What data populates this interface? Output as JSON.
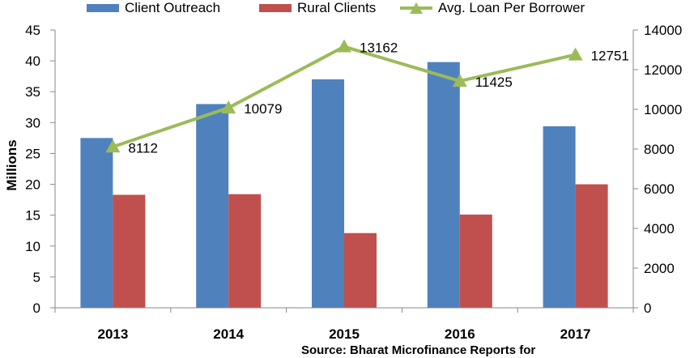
{
  "chart_data": {
    "type": "bar",
    "categories": [
      "2013",
      "2014",
      "2015",
      "2016",
      "2017"
    ],
    "series": [
      {
        "name": "Client Outreach",
        "axis": "left",
        "kind": "bar",
        "color": "#4f81bd",
        "values": [
          27.5,
          33.0,
          37.0,
          39.8,
          29.4
        ]
      },
      {
        "name": "Rural Clients",
        "axis": "left",
        "kind": "bar",
        "color": "#c0504d",
        "values": [
          18.3,
          18.4,
          12.1,
          15.1,
          20.0
        ]
      },
      {
        "name": "Avg. Loan Per Borrower",
        "axis": "right",
        "kind": "line",
        "marker": "triangle",
        "color": "#9bbb59",
        "values": [
          8112,
          10079,
          13162,
          11425,
          12751
        ]
      }
    ],
    "data_labels": [
      "8112",
      "10079",
      "13162",
      "11425",
      "12751"
    ],
    "ylabel": "Millions",
    "ylim": [
      0,
      45
    ],
    "yticks": [
      "0",
      "5",
      "10",
      "15",
      "20",
      "25",
      "30",
      "35",
      "40",
      "45"
    ],
    "y2lim": [
      0,
      14000
    ],
    "y2ticks": [
      "0",
      "2000",
      "4000",
      "6000",
      "8000",
      "10000",
      "12000",
      "14000"
    ],
    "grid": false,
    "legend_position": "top"
  },
  "source_text": "Source: Bharat Microfinance Reports for"
}
